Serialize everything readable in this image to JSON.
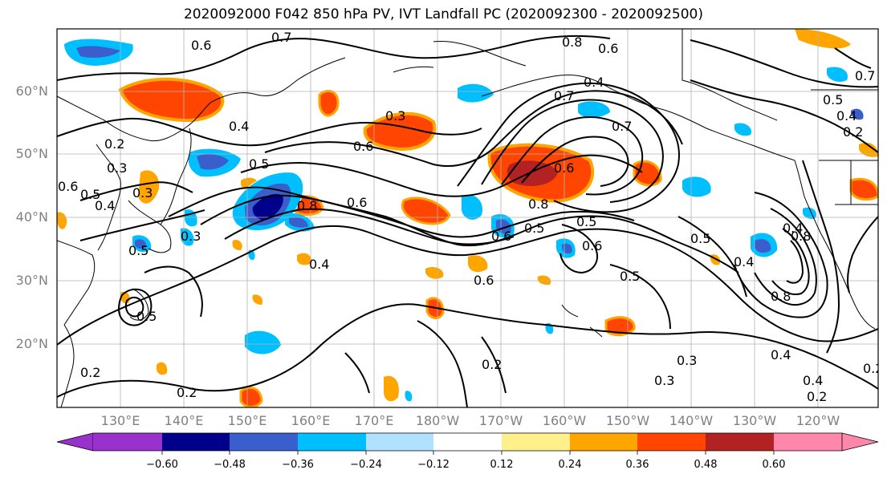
{
  "title": "2020092000 F042 850 hPa PV, IVT Landfall PC (2020092300 - 2020092500)",
  "lat_labels": [
    "60°N",
    "50°N",
    "40°N",
    "30°N",
    "20°N"
  ],
  "lon_labels": [
    "130°E",
    "140°E",
    "150°E",
    "160°E",
    "170°E",
    "180°W",
    "170°W",
    "160°W",
    "150°W",
    "140°W",
    "130°W",
    "120°W"
  ],
  "colorbar": {
    "colors": [
      "#9932cc",
      "#00008b",
      "#3a5fcd",
      "#00bfff",
      "#b0e2ff",
      "#ffffff",
      "#fff08c",
      "#ffa500",
      "#ff4500",
      "#b22222",
      "#ff88aa"
    ],
    "ticks": [
      "−0.60",
      "−0.48",
      "−0.36",
      "−0.24",
      "−0.12",
      "0.12",
      "0.24",
      "0.36",
      "0.48",
      "0.60"
    ]
  },
  "contour_labels": [
    "0.7",
    "0.6",
    "0.8",
    "0.6",
    "0.4",
    "0.4",
    "0.7",
    "0.3",
    "0.6",
    "0.5",
    "0.7",
    "0.2",
    "0.3",
    "0.6",
    "0.5",
    "0.4",
    "0.3",
    "0.6",
    "0.8",
    "0.6",
    "0.6",
    "0.5",
    "0.8",
    "0.5",
    "0.6",
    "0.5",
    "0.6",
    "0.5",
    "0.4",
    "0.4",
    "0.3",
    "0.5",
    "0.5",
    "0.4",
    "0.8",
    "0.8",
    "0.3",
    "0.2",
    "0.3",
    "0.4",
    "0.2",
    "0.2",
    "0.4",
    "0.2",
    "0.4",
    "0.2",
    "0.2",
    "0.5",
    "0.7"
  ]
}
